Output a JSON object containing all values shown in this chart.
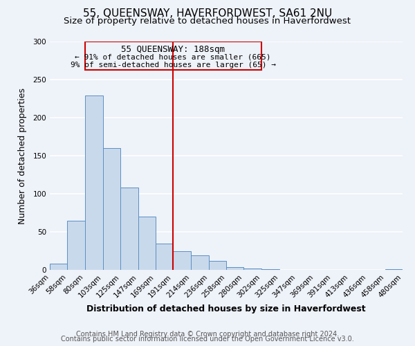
{
  "title": "55, QUEENSWAY, HAVERFORDWEST, SA61 2NU",
  "subtitle": "Size of property relative to detached houses in Haverfordwest",
  "xlabel": "Distribution of detached houses by size in Haverfordwest",
  "ylabel": "Number of detached properties",
  "footer_line1": "Contains HM Land Registry data © Crown copyright and database right 2024.",
  "footer_line2": "Contains public sector information licensed under the Open Government Licence v3.0.",
  "annotation_title": "55 QUEENSWAY: 188sqm",
  "annotation_line1": "← 91% of detached houses are smaller (665)",
  "annotation_line2": "9% of semi-detached houses are larger (65) →",
  "bar_left_edges": [
    36,
    58,
    80,
    103,
    125,
    147,
    169,
    191,
    214,
    236,
    258,
    280,
    302,
    325,
    347,
    369,
    391,
    413,
    436,
    458
  ],
  "bar_widths": [
    22,
    22,
    23,
    22,
    22,
    22,
    22,
    23,
    22,
    22,
    22,
    22,
    23,
    22,
    22,
    22,
    22,
    23,
    22,
    22
  ],
  "bar_heights": [
    8,
    65,
    229,
    160,
    108,
    70,
    35,
    25,
    19,
    12,
    4,
    2,
    1,
    0,
    0,
    0,
    0,
    0,
    0,
    1
  ],
  "tick_labels": [
    "36sqm",
    "58sqm",
    "80sqm",
    "103sqm",
    "125sqm",
    "147sqm",
    "169sqm",
    "191sqm",
    "214sqm",
    "236sqm",
    "258sqm",
    "280sqm",
    "302sqm",
    "325sqm",
    "347sqm",
    "369sqm",
    "391sqm",
    "413sqm",
    "436sqm",
    "458sqm",
    "480sqm"
  ],
  "bar_facecolor": "#c9d9ec",
  "bar_edgecolor": "#5a8fc2",
  "vline_x": 191,
  "vline_color": "#cc0000",
  "box_color": "#cc0000",
  "ylim": [
    0,
    300
  ],
  "yticks": [
    0,
    50,
    100,
    150,
    200,
    250,
    300
  ],
  "background_color": "#eef2f9",
  "grid_color": "#ffffff",
  "title_fontsize": 11,
  "subtitle_fontsize": 9.5,
  "axis_label_fontsize": 9,
  "tick_fontsize": 7.5,
  "annotation_fontsize": 9,
  "footer_fontsize": 7
}
